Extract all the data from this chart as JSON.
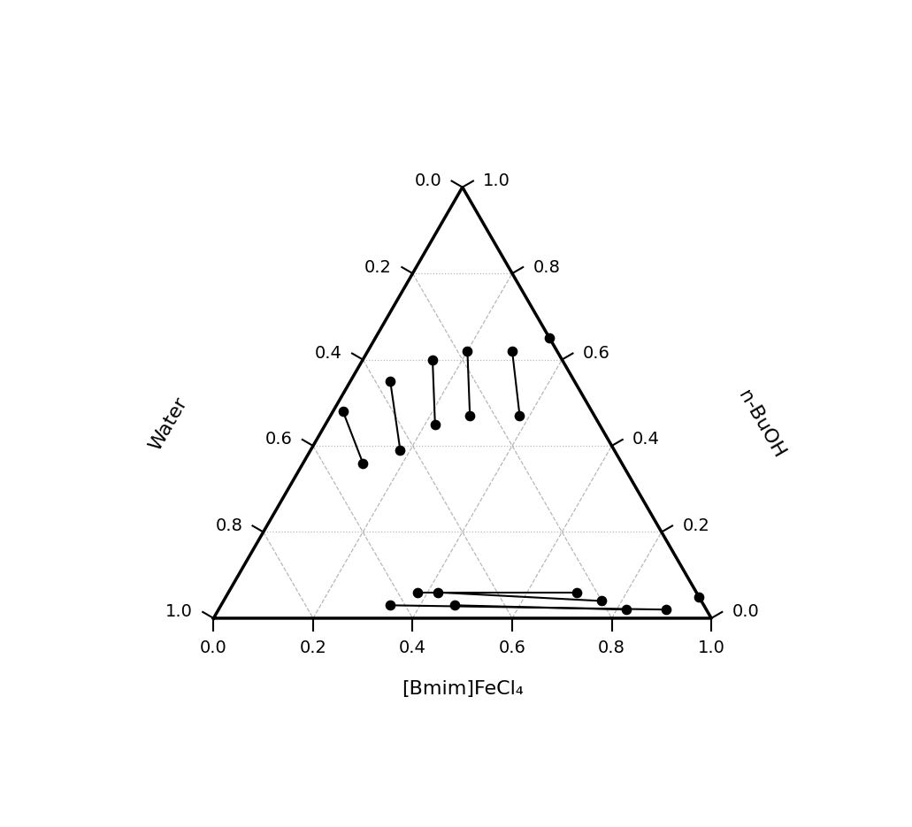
{
  "xlabel": "[Bmim]FeCl₄",
  "ylabel_left": "Water",
  "ylabel_right": "n-BuOH",
  "tick_values": [
    0.0,
    0.2,
    0.4,
    0.6,
    0.8,
    1.0
  ],
  "tie_lines": [
    {
      "p1": [
        0.02,
        0.5,
        0.48
      ],
      "p2": [
        0.12,
        0.52,
        0.36
      ]
    },
    {
      "p1": [
        0.08,
        0.37,
        0.55
      ],
      "p2": [
        0.18,
        0.43,
        0.39
      ]
    },
    {
      "p1": [
        0.14,
        0.26,
        0.6
      ],
      "p2": [
        0.22,
        0.33,
        0.45
      ]
    },
    {
      "p1": [
        0.2,
        0.18,
        0.62
      ],
      "p2": [
        0.28,
        0.25,
        0.47
      ]
    },
    {
      "p1": [
        0.29,
        0.09,
        0.62
      ],
      "p2": [
        0.38,
        0.15,
        0.47
      ]
    },
    {
      "p1": [
        0.38,
        0.56,
        0.06
      ],
      "p2": [
        0.7,
        0.24,
        0.06
      ]
    },
    {
      "p1": [
        0.42,
        0.52,
        0.06
      ],
      "p2": [
        0.76,
        0.2,
        0.04
      ]
    },
    {
      "p1": [
        0.47,
        0.5,
        0.03
      ],
      "p2": [
        0.82,
        0.16,
        0.02
      ]
    },
    {
      "p1": [
        0.34,
        0.63,
        0.03
      ],
      "p2": [
        0.9,
        0.08,
        0.02
      ]
    },
    {
      "p1": [
        0.35,
        0.0,
        0.65
      ],
      "p2": [
        0.95,
        0.0,
        0.05
      ]
    }
  ],
  "background_color": "#ffffff",
  "line_color": "#000000",
  "dot_color": "#000000",
  "dot_size": 55,
  "grid_dotted_color": "#999999",
  "grid_dashed_color": "#999999",
  "grid_alpha": 0.7,
  "tick_fontsize": 14,
  "label_fontsize": 16
}
